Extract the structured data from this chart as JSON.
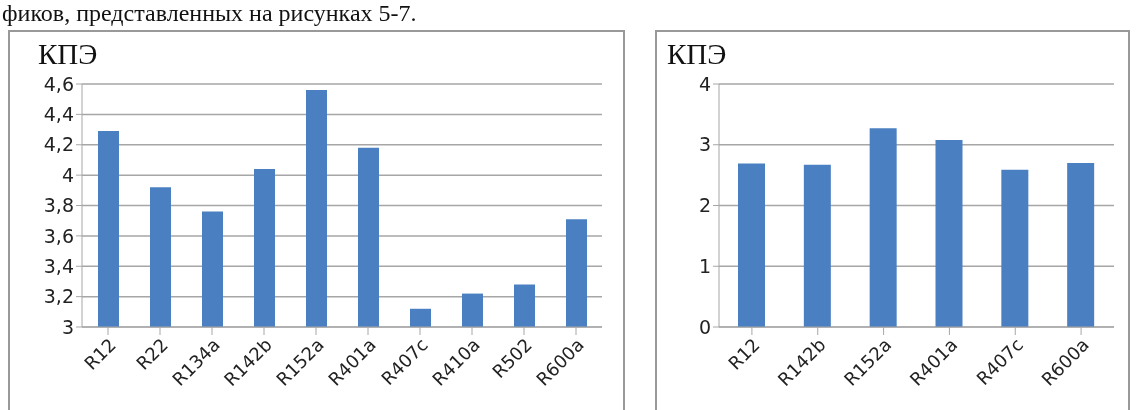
{
  "chart_data": [
    {
      "type": "bar",
      "ylabel": "КПЭ",
      "annotations": [
        "фиков, представленных на рисунках 5-7."
      ],
      "categories": [
        "R12",
        "R22",
        "R134a",
        "R142b",
        "R152a",
        "R401a",
        "R407c",
        "R410a",
        "R502",
        "R600a"
      ],
      "values": [
        4.29,
        3.92,
        3.76,
        4.04,
        4.56,
        4.18,
        3.12,
        3.22,
        3.28,
        3.71
      ],
      "color": "#4a7fc1",
      "ylim": [
        3,
        4.6
      ],
      "yticks": [
        3,
        {
          "value": 3.2,
          "label": "3,2"
        },
        {
          "value": 3.4,
          "label": "3,4"
        },
        {
          "value": 3.6,
          "label": "3,6"
        },
        {
          "value": 3.8,
          "label": "3,8"
        },
        4,
        {
          "value": 4.2,
          "label": "4,2"
        },
        {
          "value": 4.4,
          "label": "4,4"
        },
        {
          "value": 4.6,
          "label": "4,6"
        }
      ],
      "grid": "y"
    },
    {
      "type": "bar",
      "ylabel": "КПЭ",
      "categories": [
        "R12",
        "R142b",
        "R152a",
        "R401a",
        "R407c",
        "R600a"
      ],
      "values": [
        2.69,
        2.67,
        3.27,
        3.08,
        2.59,
        2.7
      ],
      "color": "#4a7fc1",
      "ylim": [
        0,
        4
      ],
      "yticks": [
        0,
        1,
        2,
        3,
        4
      ],
      "grid": "y"
    }
  ]
}
